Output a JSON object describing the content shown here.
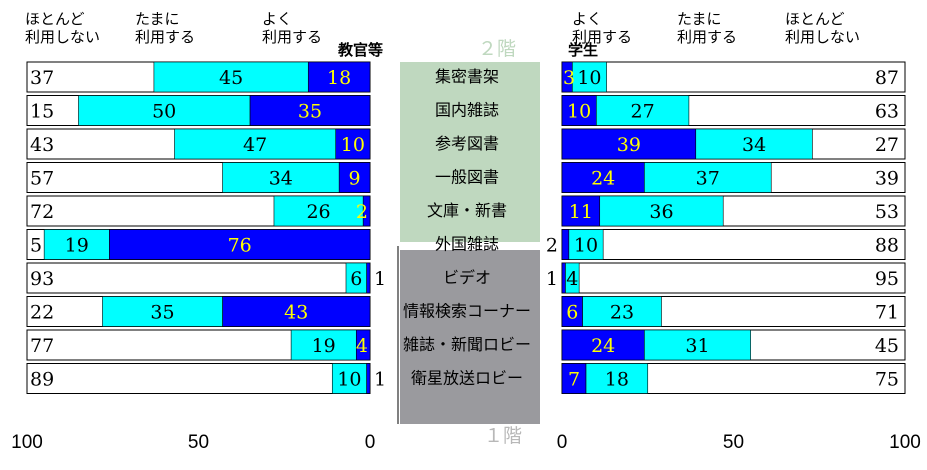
{
  "headers": {
    "left_seldom": [
      "ほとんど",
      "利用しない"
    ],
    "left_sometimes": [
      "たまに",
      "利用する"
    ],
    "left_often": [
      "よく",
      "利用する"
    ],
    "right_often": [
      "よく",
      "利用する"
    ],
    "right_sometimes": [
      "たまに",
      "利用する"
    ],
    "right_seldom": [
      "ほとんど",
      "利用しない"
    ]
  },
  "group_left": "教官等",
  "group_right": "学生",
  "floor2_label": "２階",
  "floor1_label": "１階",
  "colors": {
    "often": "#0000ff",
    "sometimes": "#00ffff",
    "seldom": "#ffffff",
    "floor2_panel": "#bfd8bf",
    "floor1_panel": "#9a9a9e",
    "label_on_dark": "#ffff00"
  },
  "chart_data": {
    "type": "bar",
    "stacked": true,
    "orientation": "horizontal",
    "categories": [
      "集密書架",
      "国内雑誌",
      "参考図書",
      "一般図書",
      "文庫・新書",
      "外国雑誌",
      "ビデオ",
      "情報検索コーナー",
      "雑誌・新聞ロビー",
      "衛星放送ロビー"
    ],
    "category_floor": [
      2,
      2,
      2,
      2,
      2,
      1,
      1,
      1,
      1,
      1
    ],
    "panels": [
      {
        "name": "教官等",
        "axis_direction": "reversed",
        "xlim": [
          100,
          0
        ],
        "ticks": [
          "100",
          "50",
          "0"
        ],
        "series": [
          {
            "name": "よく利用する",
            "values": [
              18,
              35,
              10,
              9,
              2,
              76,
              1,
              43,
              4,
              1
            ]
          },
          {
            "name": "たまに利用する",
            "values": [
              45,
              50,
              47,
              34,
              26,
              19,
              6,
              35,
              19,
              10
            ]
          },
          {
            "name": "ほとんど利用しない",
            "values": [
              37,
              15,
              43,
              57,
              72,
              5,
              93,
              22,
              77,
              89
            ]
          }
        ]
      },
      {
        "name": "学生",
        "axis_direction": "normal",
        "xlim": [
          0,
          100
        ],
        "ticks": [
          "0",
          "50",
          "100"
        ],
        "series": [
          {
            "name": "よく利用する",
            "values": [
              3,
              10,
              39,
              24,
              11,
              2,
              1,
              6,
              24,
              7
            ]
          },
          {
            "name": "たまに利用する",
            "values": [
              10,
              27,
              34,
              37,
              36,
              10,
              4,
              23,
              31,
              18
            ]
          },
          {
            "name": "ほとんど利用しない",
            "values": [
              87,
              63,
              27,
              39,
              53,
              88,
              95,
              71,
              45,
              75
            ]
          }
        ]
      }
    ]
  }
}
